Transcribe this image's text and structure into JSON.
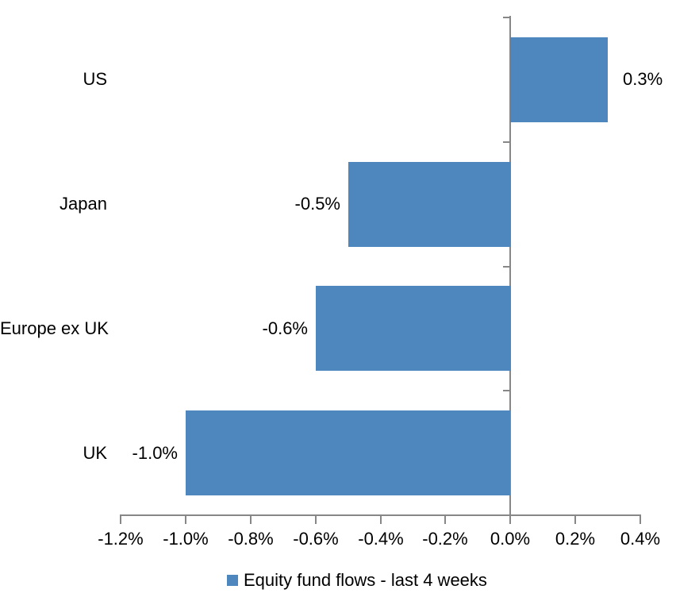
{
  "chart_data": {
    "type": "bar",
    "orientation": "horizontal",
    "title": "",
    "xlabel": "",
    "ylabel": "",
    "categories": [
      "US",
      "Japan",
      "Europe ex UK",
      "UK"
    ],
    "series": [
      {
        "name": "Equity fund flows - last 4 weeks",
        "values": [
          0.3,
          -0.5,
          -0.6,
          -1.0
        ],
        "data_labels": [
          "0.3%",
          "-0.5%",
          "-0.6%",
          "-1.0%"
        ]
      }
    ],
    "xlim": [
      -1.2,
      0.4
    ],
    "x_tick_step": 0.2,
    "x_tick_labels": [
      "-1.2%",
      "-1.0%",
      "-0.8%",
      "-0.6%",
      "-0.4%",
      "-0.2%",
      "0.0%",
      "0.2%",
      "0.4%"
    ],
    "grid": false,
    "zero_baseline": true,
    "legend_position": "bottom-center",
    "bar_color": "#4d87be",
    "axis_color": "#878787",
    "text_color": "#000000",
    "background_color": "#ffffff"
  },
  "legend": {
    "marker": "square-icon",
    "marker_color": "#4d87be",
    "label": "Equity fund flows - last 4 weeks"
  }
}
